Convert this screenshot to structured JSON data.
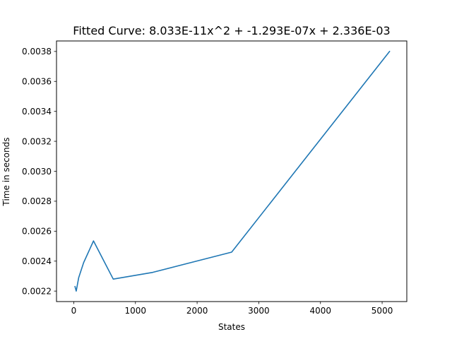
{
  "chart_data": {
    "type": "line",
    "title": "Fitted Curve: 8.033E-11x^2 + -1.293E-07x + 2.336E-03",
    "xlabel": "States",
    "ylabel": "Time in seconds",
    "xlim": [
      -280,
      5400
    ],
    "ylim": [
      0.00213,
      0.00387
    ],
    "xticks": [
      0,
      1000,
      2000,
      3000,
      4000,
      5000
    ],
    "yticks": [
      0.0022,
      0.0024,
      0.0026,
      0.0028,
      0.003,
      0.0032,
      0.0034,
      0.0036,
      0.0038
    ],
    "xtick_labels": [
      "0",
      "1000",
      "2000",
      "3000",
      "4000",
      "5000"
    ],
    "ytick_labels": [
      "0.0022",
      "0.0024",
      "0.0026",
      "0.0028",
      "0.0030",
      "0.0032",
      "0.0034",
      "0.0036",
      "0.0038"
    ],
    "grid": false,
    "series": [
      {
        "color": "#1f77b4",
        "x": [
          20,
          40,
          80,
          160,
          320,
          640,
          1280,
          2560,
          5120
        ],
        "y": [
          0.00223,
          0.0022,
          0.00229,
          0.00239,
          0.002535,
          0.00228,
          0.002325,
          0.00246,
          0.0038
        ]
      }
    ]
  }
}
